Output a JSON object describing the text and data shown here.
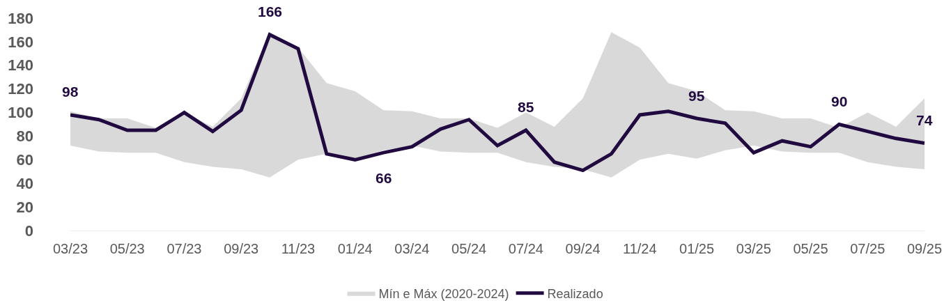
{
  "chart_data": {
    "type": "line",
    "categories": [
      "03/23",
      null,
      "05/23",
      null,
      "07/23",
      null,
      "09/23",
      null,
      "11/23",
      null,
      "01/24",
      null,
      "03/24",
      null,
      "05/24",
      null,
      "07/24",
      null,
      "09/24",
      null,
      "11/24",
      null,
      "01/25",
      null,
      "03/25",
      null,
      "05/25",
      null,
      "07/25",
      null,
      "09/25"
    ],
    "series": [
      {
        "name": "Mín e Máx (2020-2024)",
        "color": "#d9d9d9",
        "values": [
          null,
          null,
          null,
          null,
          null,
          null,
          null,
          null,
          null,
          null,
          null,
          null,
          null,
          null,
          null,
          null,
          null,
          null,
          null,
          null,
          null,
          null,
          null,
          null,
          null,
          null,
          null,
          null,
          null,
          null,
          null
        ],
        "lower": [
          72,
          67,
          66,
          66,
          58,
          54,
          52,
          45,
          60,
          65,
          61,
          68,
          72,
          67,
          66,
          66,
          58,
          54,
          52,
          45,
          60,
          65,
          61,
          68,
          72,
          67,
          66,
          66,
          58,
          54,
          52
        ],
        "upper": [
          101,
          95,
          95,
          87,
          100,
          88,
          112,
          168,
          155,
          125,
          118,
          102,
          101,
          95,
          95,
          87,
          100,
          88,
          112,
          168,
          155,
          125,
          118,
          102,
          101,
          95,
          95,
          87,
          100,
          88,
          112
        ]
      },
      {
        "name": "Realizado",
        "color": "#200a40",
        "values": [
          98,
          94,
          85,
          85,
          100,
          84,
          102,
          166,
          154,
          65,
          60,
          66,
          71,
          86,
          94,
          72,
          85,
          58,
          51,
          65,
          98,
          101,
          95,
          91,
          66,
          76,
          71,
          90,
          84,
          78,
          74
        ],
        "value_labels": [
          "98",
          null,
          null,
          null,
          null,
          null,
          null,
          "166",
          null,
          null,
          null,
          "66",
          null,
          null,
          null,
          null,
          "85",
          null,
          null,
          null,
          null,
          null,
          "95",
          null,
          null,
          null,
          null,
          "90",
          null,
          null,
          "74"
        ]
      }
    ],
    "ylim": [
      0,
      180
    ],
    "yticks": [
      0,
      20,
      40,
      60,
      80,
      100,
      120,
      140,
      160,
      180
    ],
    "legend": "bottom"
  }
}
